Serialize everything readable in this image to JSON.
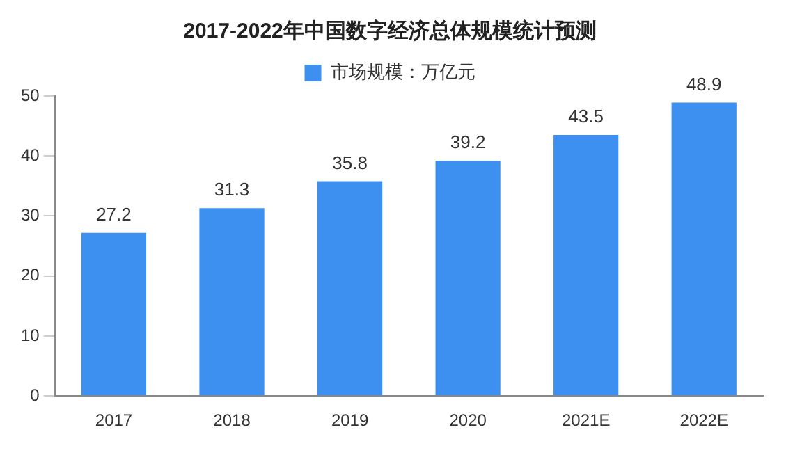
{
  "chart_data": {
    "type": "bar",
    "title": "2017-2022年中国数字经济总体规模统计预测",
    "categories": [
      "2017",
      "2018",
      "2019",
      "2020",
      "2021E",
      "2022E"
    ],
    "series": [
      {
        "name": "市场规模：万亿元",
        "color": "#3d8ff0",
        "values": [
          27.2,
          31.3,
          35.8,
          39.2,
          43.5,
          48.9
        ]
      }
    ],
    "ylim": [
      0,
      50
    ],
    "yticks": [
      0,
      10,
      20,
      30,
      40,
      50
    ],
    "grid": false,
    "legend": "top",
    "data_labels": true
  }
}
